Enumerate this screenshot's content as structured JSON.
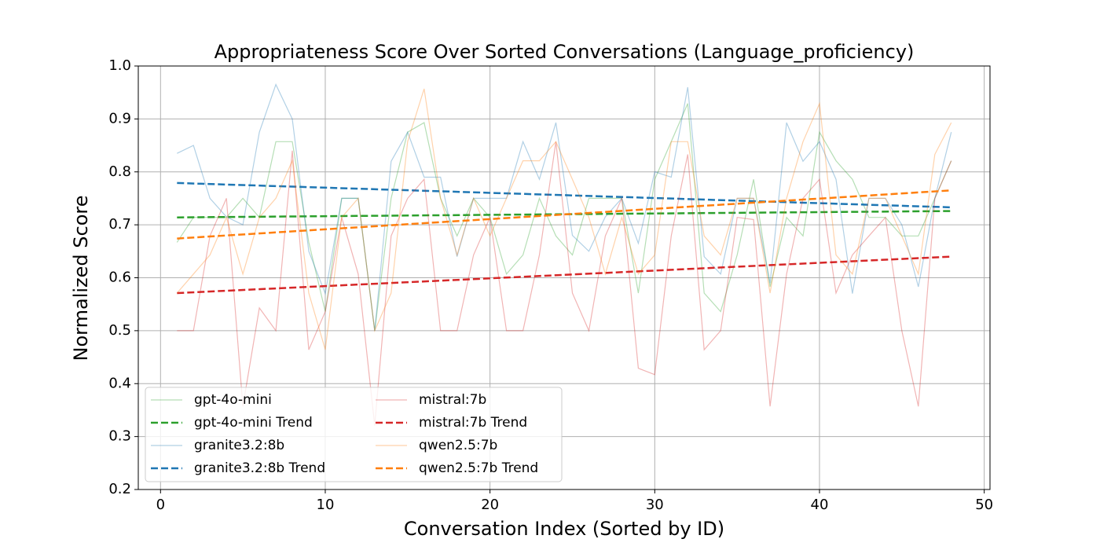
{
  "chart_data": {
    "type": "line",
    "title": "Appropriateness Score Over Sorted Conversations (Language_proficiency)",
    "x_label": "Conversation Index (Sorted by ID)",
    "y_label": "Normalized Score",
    "x": [
      1,
      2,
      3,
      4,
      5,
      6,
      7,
      8,
      9,
      10,
      11,
      12,
      13,
      14,
      15,
      16,
      17,
      18,
      19,
      20,
      21,
      22,
      23,
      24,
      25,
      26,
      27,
      28,
      29,
      30,
      31,
      32,
      33,
      34,
      35,
      36,
      37,
      38,
      39,
      40,
      41,
      42,
      43,
      44,
      45,
      46,
      47,
      48
    ],
    "series": [
      {
        "name": "gpt-4o-mini",
        "color": "#2ca02c",
        "alpha": 0.35,
        "values": [
          0.667,
          0.714,
          0.714,
          0.714,
          0.75,
          0.714,
          0.857,
          0.857,
          0.667,
          0.536,
          0.75,
          0.75,
          0.5,
          0.75,
          0.875,
          0.893,
          0.75,
          0.679,
          0.75,
          0.714,
          0.607,
          0.643,
          0.75,
          0.679,
          0.643,
          0.75,
          0.75,
          0.75,
          0.571,
          0.786,
          0.857,
          0.929,
          0.571,
          0.536,
          0.643,
          0.786,
          0.583,
          0.714,
          0.679,
          0.875,
          0.821,
          0.786,
          0.714,
          0.714,
          0.679,
          0.679,
          0.75,
          0.821
        ]
      },
      {
        "name": "gpt-4o-mini Trend",
        "color": "#2ca02c",
        "dashed": true,
        "x": [
          1,
          48
        ],
        "values": [
          0.714,
          0.726
        ]
      },
      {
        "name": "granite3.2:8b",
        "color": "#1f77b4",
        "alpha": 0.35,
        "values": [
          0.835,
          0.85,
          0.75,
          0.715,
          0.7,
          0.875,
          0.965,
          0.9,
          0.65,
          0.57,
          0.75,
          0.75,
          0.5,
          0.82,
          0.875,
          0.79,
          0.79,
          0.64,
          0.75,
          0.75,
          0.75,
          0.857,
          0.786,
          0.893,
          0.68,
          0.65,
          0.715,
          0.75,
          0.665,
          0.8,
          0.79,
          0.96,
          0.64,
          0.607,
          0.75,
          0.75,
          0.59,
          0.893,
          0.82,
          0.857,
          0.786,
          0.57,
          0.75,
          0.75,
          0.7,
          0.583,
          0.75,
          0.875
        ]
      },
      {
        "name": "granite3.2:8b Trend",
        "color": "#1f77b4",
        "dashed": true,
        "x": [
          1,
          48
        ],
        "values": [
          0.779,
          0.733
        ]
      },
      {
        "name": "mistral:7b",
        "color": "#d62728",
        "alpha": 0.35,
        "values": [
          0.5,
          0.5,
          0.679,
          0.75,
          0.357,
          0.543,
          0.5,
          0.84,
          0.464,
          0.536,
          0.714,
          0.607,
          0.321,
          0.679,
          0.75,
          0.786,
          0.5,
          0.5,
          0.643,
          0.714,
          0.5,
          0.5,
          0.643,
          0.857,
          0.571,
          0.5,
          0.679,
          0.75,
          0.429,
          0.417,
          0.679,
          0.833,
          0.464,
          0.5,
          0.714,
          0.71,
          0.357,
          0.607,
          0.75,
          0.786,
          0.571,
          0.643,
          0.679,
          0.714,
          0.5,
          0.357,
          0.75,
          0.821
        ]
      },
      {
        "name": "mistral:7b Trend",
        "color": "#d62728",
        "dashed": true,
        "x": [
          1,
          48
        ],
        "values": [
          0.571,
          0.64
        ]
      },
      {
        "name": "qwen2.5:7b",
        "color": "#ff7f0e",
        "alpha": 0.35,
        "values": [
          0.571,
          0.607,
          0.643,
          0.714,
          0.607,
          0.714,
          0.75,
          0.821,
          0.571,
          0.464,
          0.714,
          0.75,
          0.5,
          0.571,
          0.857,
          0.957,
          0.75,
          0.643,
          0.75,
          0.679,
          0.75,
          0.821,
          0.821,
          0.857,
          0.786,
          0.714,
          0.607,
          0.714,
          0.607,
          0.643,
          0.857,
          0.857,
          0.679,
          0.643,
          0.75,
          0.75,
          0.571,
          0.75,
          0.857,
          0.929,
          0.643,
          0.607,
          0.75,
          0.75,
          0.679,
          0.607,
          0.833,
          0.893
        ]
      },
      {
        "name": "qwen2.5:7b Trend",
        "color": "#ff7f0e",
        "dashed": true,
        "x": [
          1,
          48
        ],
        "values": [
          0.674,
          0.765
        ]
      }
    ],
    "xlim": [
      -1.35,
      50.35
    ],
    "xticks": [
      0,
      10,
      20,
      30,
      40,
      50
    ],
    "ylim": [
      0.2,
      1.0
    ],
    "yticks": [
      0.2,
      0.3,
      0.4,
      0.5,
      0.6,
      0.7,
      0.8,
      0.9,
      {
        "value": 1.0,
        "label": "1.0"
      }
    ],
    "grid": true,
    "legend": "lower left",
    "legend_columns": 2
  }
}
